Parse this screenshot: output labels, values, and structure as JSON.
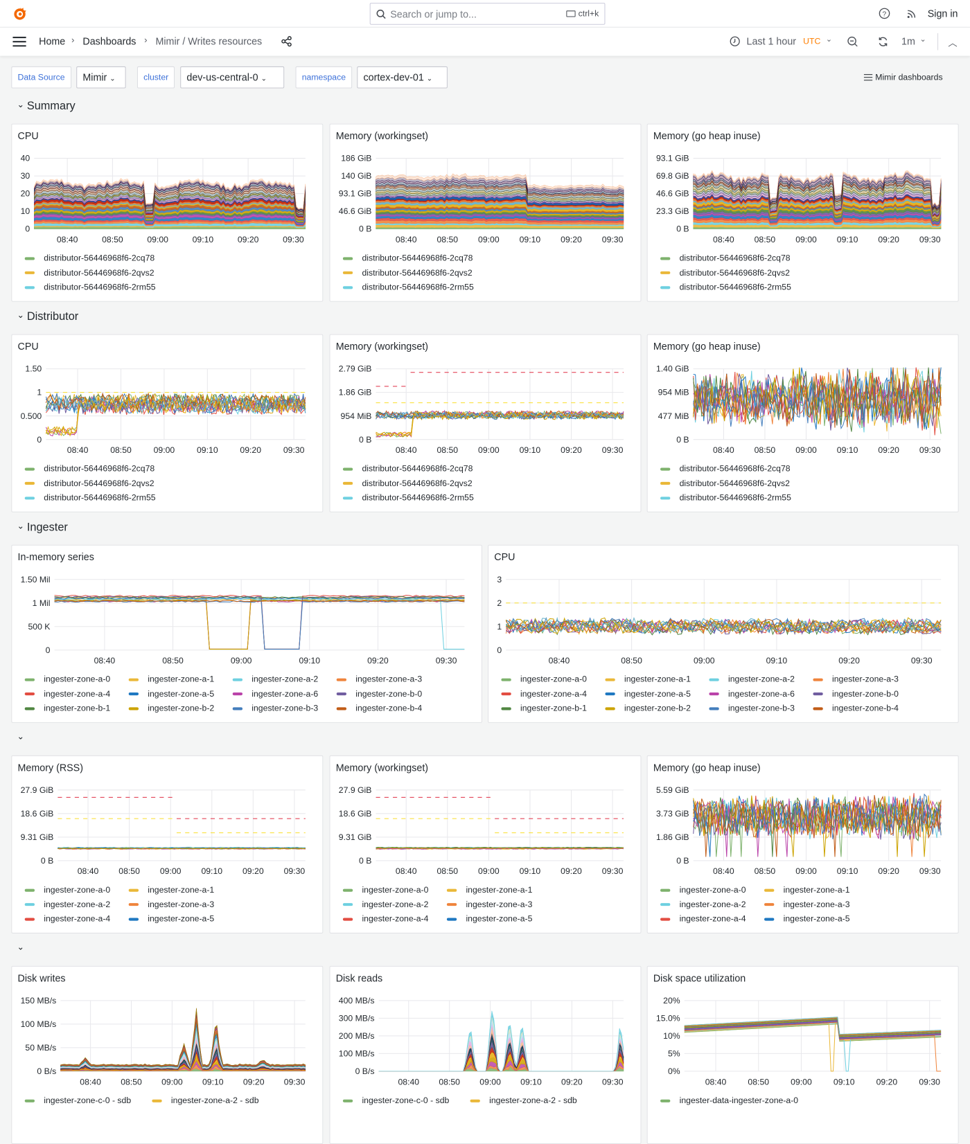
{
  "header": {
    "search_placeholder": "Search or jump to...",
    "search_shortcut": "ctrl+k",
    "sign_in": "Sign in"
  },
  "breadcrumb": [
    "Home",
    "Dashboards",
    "Mimir / Writes resources"
  ],
  "time_picker": {
    "range": "Last 1 hour",
    "timezone": "UTC",
    "refresh": "1m"
  },
  "variables": [
    {
      "label": "Data Source",
      "value": "Mimir"
    },
    {
      "label": "cluster",
      "value": "dev-us-central-0"
    },
    {
      "label": "namespace",
      "value": "cortex-dev-01"
    }
  ],
  "dashboards_link": "Mimir dashboards",
  "colors": {
    "accent": "#3d71d9",
    "utc": "#ff7f00",
    "threshold_red": "#e02f44",
    "threshold_yellow": "#fade2a"
  },
  "x_ticks": [
    "08:40",
    "08:50",
    "09:00",
    "09:10",
    "09:20",
    "09:30"
  ],
  "rows": [
    {
      "title": "Summary",
      "panels": [
        {
          "title": "CPU",
          "type": "stacked-area",
          "y_ticks": [
            "0",
            "10",
            "20",
            "30",
            "40"
          ],
          "legend": [
            "distributor-56446968f6-2cq78",
            "distributor-56446968f6-2qvs2",
            "distributor-56446968f6-2rm55"
          ]
        },
        {
          "title": "Memory (workingset)",
          "type": "stacked-area",
          "y_ticks": [
            "0 B",
            "46.6 GiB",
            "93.1 GiB",
            "140 GiB",
            "186 GiB"
          ],
          "legend": [
            "distributor-56446968f6-2cq78",
            "distributor-56446968f6-2qvs2",
            "distributor-56446968f6-2rm55"
          ]
        },
        {
          "title": "Memory (go heap inuse)",
          "type": "stacked-area",
          "y_ticks": [
            "0 B",
            "23.3 GiB",
            "46.6 GiB",
            "69.8 GiB",
            "93.1 GiB"
          ],
          "legend": [
            "distributor-56446968f6-2cq78",
            "distributor-56446968f6-2qvs2",
            "distributor-56446968f6-2rm55"
          ]
        }
      ]
    },
    {
      "title": "Distributor",
      "panels": [
        {
          "title": "CPU",
          "type": "line",
          "y_ticks": [
            "0",
            "0.500",
            "1",
            "1.50"
          ],
          "legend": [
            "distributor-56446968f6-2cq78",
            "distributor-56446968f6-2qvs2",
            "distributor-56446968f6-2rm55"
          ]
        },
        {
          "title": "Memory (workingset)",
          "type": "line",
          "y_ticks": [
            "0 B",
            "954 MiB",
            "1.86 GiB",
            "2.79 GiB"
          ],
          "legend": [
            "distributor-56446968f6-2cq78",
            "distributor-56446968f6-2qvs2",
            "distributor-56446968f6-2rm55"
          ]
        },
        {
          "title": "Memory (go heap inuse)",
          "type": "line",
          "y_ticks": [
            "0 B",
            "477 MiB",
            "954 MiB",
            "1.40 GiB"
          ],
          "legend": [
            "distributor-56446968f6-2cq78",
            "distributor-56446968f6-2qvs2",
            "distributor-56446968f6-2rm55"
          ]
        }
      ]
    },
    {
      "title": "Ingester",
      "panels": [
        {
          "title": "In-memory series",
          "type": "line",
          "y_ticks": [
            "0",
            "500 K",
            "1 Mil",
            "1.50 Mil"
          ],
          "legend": [
            "ingester-zone-a-0",
            "ingester-zone-a-1",
            "ingester-zone-a-2",
            "ingester-zone-a-3",
            "ingester-zone-a-4",
            "ingester-zone-a-5",
            "ingester-zone-a-6",
            "ingester-zone-b-0",
            "ingester-zone-b-1",
            "ingester-zone-b-2",
            "ingester-zone-b-3",
            "ingester-zone-b-4"
          ]
        },
        {
          "title": "CPU",
          "type": "line",
          "y_ticks": [
            "0",
            "1",
            "2",
            "3"
          ],
          "legend": [
            "ingester-zone-a-0",
            "ingester-zone-a-1",
            "ingester-zone-a-2",
            "ingester-zone-a-3",
            "ingester-zone-a-4",
            "ingester-zone-a-5",
            "ingester-zone-a-6",
            "ingester-zone-b-0",
            "ingester-zone-b-1",
            "ingester-zone-b-2",
            "ingester-zone-b-3",
            "ingester-zone-b-4"
          ]
        }
      ]
    },
    {
      "title": "",
      "panels": [
        {
          "title": "Memory (RSS)",
          "type": "line",
          "y_ticks": [
            "0 B",
            "9.31 GiB",
            "18.6 GiB",
            "27.9 GiB"
          ],
          "legend": [
            "ingester-zone-a-0",
            "ingester-zone-a-1",
            "ingester-zone-a-2",
            "ingester-zone-a-3",
            "ingester-zone-a-4",
            "ingester-zone-a-5"
          ]
        },
        {
          "title": "Memory (workingset)",
          "type": "line",
          "y_ticks": [
            "0 B",
            "9.31 GiB",
            "18.6 GiB",
            "27.9 GiB"
          ],
          "legend": [
            "ingester-zone-a-0",
            "ingester-zone-a-1",
            "ingester-zone-a-2",
            "ingester-zone-a-3",
            "ingester-zone-a-4",
            "ingester-zone-a-5"
          ]
        },
        {
          "title": "Memory (go heap inuse)",
          "type": "line",
          "y_ticks": [
            "0 B",
            "1.86 GiB",
            "3.73 GiB",
            "5.59 GiB"
          ],
          "legend": [
            "ingester-zone-a-0",
            "ingester-zone-a-1",
            "ingester-zone-a-2",
            "ingester-zone-a-3",
            "ingester-zone-a-4",
            "ingester-zone-a-5"
          ]
        }
      ]
    },
    {
      "title": "",
      "panels": [
        {
          "title": "Disk writes",
          "type": "stacked-area",
          "y_ticks": [
            "0 B/s",
            "50 MB/s",
            "100 MB/s",
            "150 MB/s"
          ],
          "legend": [
            "ingester-zone-c-0 - sdb",
            "ingester-zone-a-2 - sdb"
          ]
        },
        {
          "title": "Disk reads",
          "type": "stacked-area",
          "y_ticks": [
            "0 B/s",
            "100 MB/s",
            "200 MB/s",
            "300 MB/s",
            "400 MB/s"
          ],
          "legend": [
            "ingester-zone-c-0 - sdb",
            "ingester-zone-a-2 - sdb"
          ]
        },
        {
          "title": "Disk space utilization",
          "type": "line",
          "y_ticks": [
            "0%",
            "5%",
            "10%",
            "15.0%",
            "20%"
          ],
          "legend": [
            "ingester-data-ingester-zone-a-0"
          ]
        }
      ]
    }
  ],
  "series_palette": [
    "#7eb26d",
    "#eab839",
    "#6ed0e0",
    "#ef843c",
    "#e24d42",
    "#1f78c1",
    "#ba43a9",
    "#705da0",
    "#508642",
    "#cca300",
    "#447ebc",
    "#c15c17"
  ]
}
